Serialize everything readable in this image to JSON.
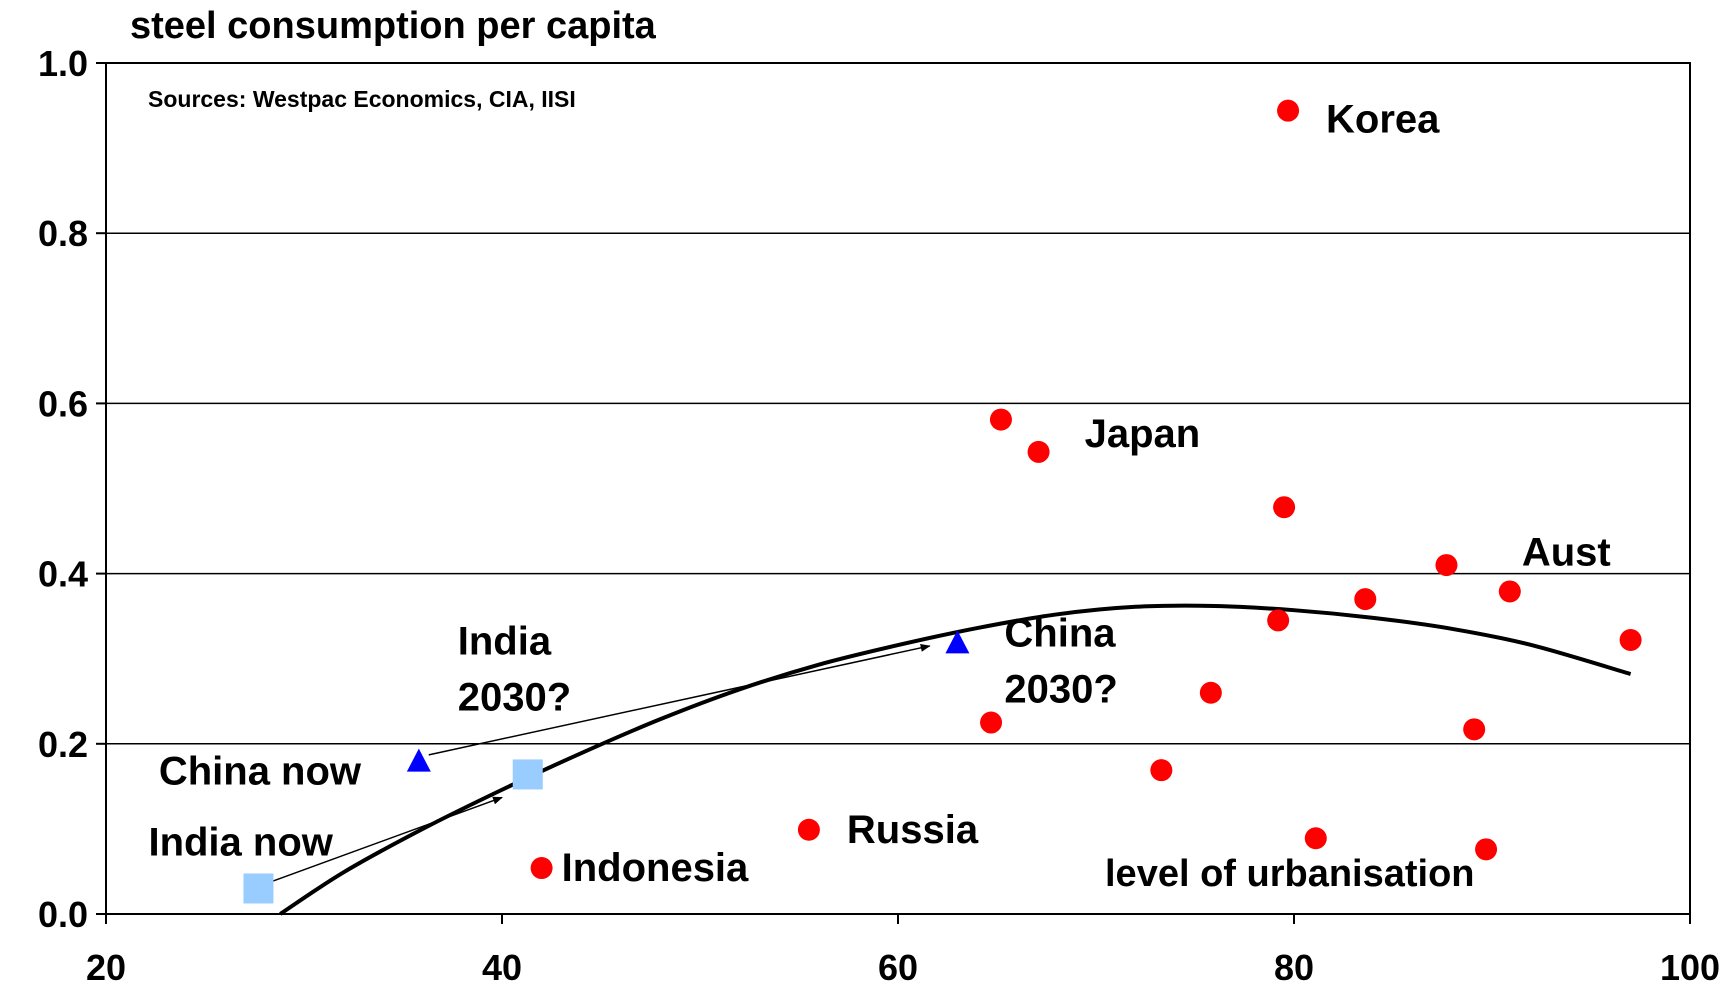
{
  "chart_data": {
    "type": "scatter",
    "title": "steel consumption per capita",
    "source": "Sources: Westpac Economics, CIA, IISI",
    "xlabel": "level of urbanisation",
    "xlim": [
      20,
      100
    ],
    "ylim": [
      0.0,
      1.0
    ],
    "x_ticks": [
      "20",
      "40",
      "60",
      "80",
      "100"
    ],
    "y_ticks": [
      "0.0",
      "0.2",
      "0.4",
      "0.6",
      "0.8",
      "1.0"
    ],
    "grid": true,
    "colors": {
      "countries": "#ff0000",
      "china": "#0000ff",
      "india": "#99ccff",
      "trend": "#000000"
    },
    "series": [
      {
        "marker": "circle",
        "points": [
          {
            "x": 79.7,
            "y": 0.944,
            "label": "Korea"
          },
          {
            "x": 65.2,
            "y": 0.581,
            "label": ""
          },
          {
            "x": 67.1,
            "y": 0.543,
            "label": "Japan"
          },
          {
            "x": 79.5,
            "y": 0.478,
            "label": ""
          },
          {
            "x": 87.7,
            "y": 0.41,
            "label": ""
          },
          {
            "x": 90.9,
            "y": 0.379,
            "label": "Aust"
          },
          {
            "x": 83.6,
            "y": 0.37,
            "label": ""
          },
          {
            "x": 79.2,
            "y": 0.345,
            "label": ""
          },
          {
            "x": 97.0,
            "y": 0.322,
            "label": ""
          },
          {
            "x": 75.8,
            "y": 0.26,
            "label": ""
          },
          {
            "x": 64.7,
            "y": 0.225,
            "label": ""
          },
          {
            "x": 89.1,
            "y": 0.217,
            "label": ""
          },
          {
            "x": 73.3,
            "y": 0.169,
            "label": ""
          },
          {
            "x": 55.5,
            "y": 0.099,
            "label": "Russia"
          },
          {
            "x": 81.1,
            "y": 0.089,
            "label": ""
          },
          {
            "x": 89.7,
            "y": 0.076,
            "label": ""
          },
          {
            "x": 42.0,
            "y": 0.054,
            "label": "Indonesia"
          }
        ]
      },
      {
        "marker": "triangle",
        "points": [
          {
            "x": 35.8,
            "y": 0.179,
            "label": "China now"
          },
          {
            "x": 63.0,
            "y": 0.318,
            "label": "China 2030?"
          }
        ]
      },
      {
        "marker": "square",
        "points": [
          {
            "x": 27.7,
            "y": 0.03,
            "label": "India now"
          },
          {
            "x": 41.3,
            "y": 0.164,
            "label": "India 2030?"
          }
        ]
      }
    ],
    "trend_line": {
      "x": [
        28.8,
        32,
        36,
        40,
        44,
        48,
        52,
        56,
        60,
        64,
        68,
        72,
        76,
        80,
        84,
        88,
        92,
        97
      ],
      "y": [
        0.0,
        0.049,
        0.1,
        0.146,
        0.189,
        0.229,
        0.264,
        0.293,
        0.316,
        0.336,
        0.352,
        0.361,
        0.362,
        0.357,
        0.348,
        0.335,
        0.316,
        0.282
      ]
    },
    "arrows": [
      {
        "from": {
          "x": 28.0,
          "y": 0.035
        },
        "to": {
          "x": 40.0,
          "y": 0.137
        }
      },
      {
        "from": {
          "x": 36.3,
          "y": 0.187
        },
        "to": {
          "x": 61.6,
          "y": 0.315
        }
      }
    ]
  }
}
